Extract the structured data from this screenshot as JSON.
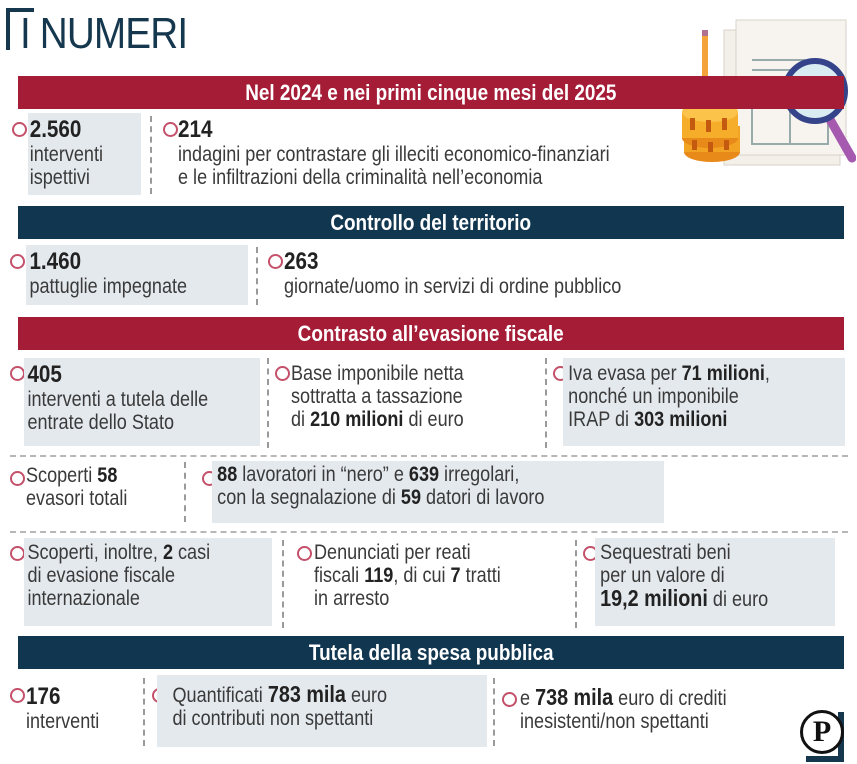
{
  "title": "I NUMERI",
  "colors": {
    "red": "#a51c37",
    "navy": "#113650",
    "shade": "#e4e9ed",
    "bullet": "#c4506a"
  },
  "sections": {
    "period": {
      "header": "Nel 2024 e nei primi cinque mesi del 2025",
      "items": [
        {
          "value": "2.560",
          "line1": "interventi",
          "line2": "ispettivi"
        },
        {
          "value": "214",
          "line1": "indagini per contrastare gli illeciti economico-finanziari",
          "line2": "e le infiltrazioni della criminalità nell’economia"
        }
      ]
    },
    "territorio": {
      "header": "Controllo del territorio",
      "items": [
        {
          "value": "1.460",
          "line1": "pattuglie impegnate"
        },
        {
          "value": "263",
          "line1": "giornate/uomo in servizi di ordine pubblico"
        }
      ]
    },
    "evasione": {
      "header": "Contrasto all’evasione fiscale",
      "row1": {
        "a": {
          "value": "405",
          "line1": "interventi a tutela delle",
          "line2": "entrate dello Stato"
        },
        "b": {
          "l1": "Base imponibile netta",
          "l2": "sottratta a tassazione",
          "l3_pre": "di ",
          "l3_bold": "210 milioni",
          "l3_post": " di euro"
        },
        "c": {
          "l1_pre": "Iva evasa per ",
          "l1_bold": "71 milioni",
          "l1_post": ",",
          "l2": "nonché un imponibile",
          "l3_pre": "IRAP di ",
          "l3_bold": "303 milioni"
        }
      },
      "row2": {
        "a": {
          "l1_pre": "Scoperti ",
          "l1_bold": "58",
          "l2": "evasori totali"
        },
        "b": {
          "l1_bold1": "88",
          "l1_mid": " lavoratori in “nero” e ",
          "l1_bold2": "639",
          "l1_post": " irregolari,",
          "l2_pre": "con la segnalazione di ",
          "l2_bold": "59",
          "l2_post": " datori di lavoro"
        }
      },
      "row3": {
        "a": {
          "l1_pre": "Scoperti, inoltre, ",
          "l1_bold": "2",
          "l1_post": " casi",
          "l2": "di evasione fiscale",
          "l3": "internazionale"
        },
        "b": {
          "l1": "Denunciati per reati",
          "l2_pre": "fiscali ",
          "l2_bold": "119",
          "l2_mid": ", di cui ",
          "l2_bold2": "7",
          "l2_post": " tratti",
          "l3": "in arresto"
        },
        "c": {
          "l1": "Sequestrati beni",
          "l2": "per un valore di",
          "l3_bold": "19,2 milioni",
          "l3_post": " di euro"
        }
      }
    },
    "spesa": {
      "header": "Tutela della spesa pubblica",
      "a": {
        "value": "176",
        "line1": "interventi"
      },
      "b": {
        "l1_pre": "Quantificati ",
        "l1_bold": "783 mila",
        "l1_post": " euro",
        "l2": "di contributi non spettanti"
      },
      "c": {
        "l1_pre": "e ",
        "l1_bold": "738 mila",
        "l1_post": " euro di crediti",
        "l2": "inesistenti/non spettanti"
      }
    }
  },
  "logo": "P"
}
